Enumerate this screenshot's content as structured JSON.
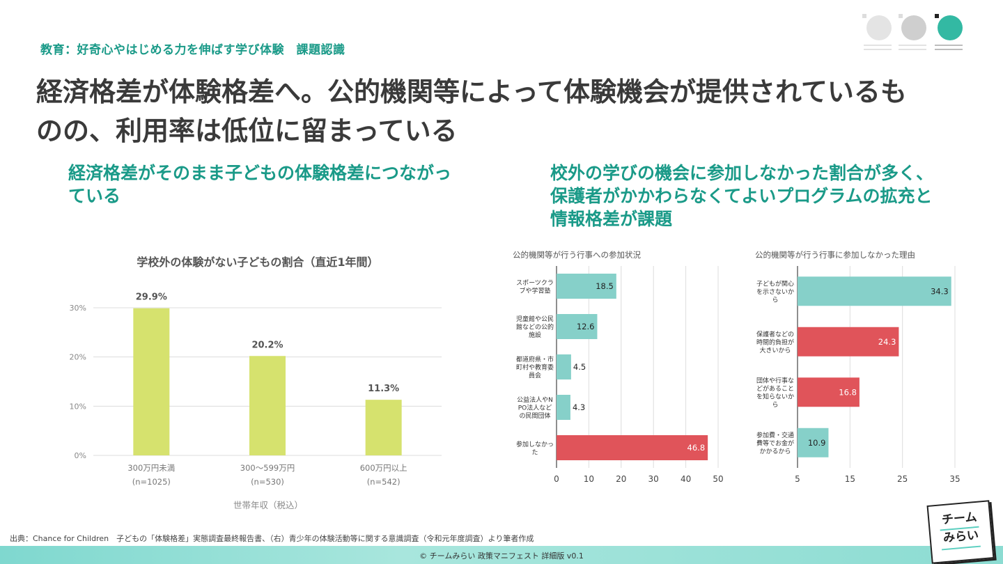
{
  "header": {
    "section_label": "教育：好奇心やはじめる力を伸ばす学び体験　課題認識",
    "title": "経済格差が体験格差へ。公的機関等によって体験機会が提供されているものの、利用率は低位に留まっている"
  },
  "left_heading": "経済格差がそのまま子どもの体験格差につながっている",
  "right_heading": "校外の学びの機会に参加しなかった割合が多く、保護者がかかわらなくてよいプログラムの拡充と情報格差が課題",
  "colors": {
    "accent": "#1a9a88",
    "bar_green": "#d6e26e",
    "bar_teal": "#86d0c9",
    "bar_red": "#e0545a"
  },
  "chart_data": [
    {
      "type": "bar",
      "title": "学校外の体験がない子どもの割合（直近1年間）",
      "xlabel": "世帯年収（税込）",
      "ylabel": "",
      "categories": [
        "300万円未満",
        "300～599万円",
        "600万円以上"
      ],
      "category_notes": [
        "(n=1025)",
        "(n=530)",
        "(n=542)"
      ],
      "values": [
        29.9,
        20.2,
        11.3
      ],
      "value_labels": [
        "29.9%",
        "20.2%",
        "11.3%"
      ],
      "ylim": [
        0,
        30
      ],
      "yticks": [
        0,
        10,
        20,
        30
      ],
      "ytick_labels": [
        "0%",
        "10%",
        "20%",
        "30%"
      ],
      "grid": true
    },
    {
      "type": "bar",
      "orientation": "horizontal",
      "title": "公的機関等が行う行事への参加状況",
      "categories": [
        "スポーツクラブや学習塾",
        "児童館や公民館などの公的施設",
        "都道府県・市町村や教育委員会",
        "公益法人やNPO法人などの民間団体",
        "参加しなかった"
      ],
      "values": [
        18.5,
        12.6,
        4.5,
        4.3,
        46.8
      ],
      "colors": [
        "#86d0c9",
        "#86d0c9",
        "#86d0c9",
        "#86d0c9",
        "#e0545a"
      ],
      "xlim": [
        0,
        50
      ],
      "xticks": [
        0,
        10,
        20,
        30,
        40,
        50
      ],
      "grid": true
    },
    {
      "type": "bar",
      "orientation": "horizontal",
      "title": "公的機関等が行う行事に参加しなかった理由",
      "categories": [
        "子どもが関心を示さないから",
        "保護者などの時間的負担が大きいから",
        "団体や行事などがあることを知らないから",
        "参加費・交通費等でお金がかかるから"
      ],
      "values": [
        34.3,
        24.3,
        16.8,
        10.9
      ],
      "colors": [
        "#86d0c9",
        "#e0545a",
        "#e0545a",
        "#86d0c9"
      ],
      "xlim": [
        5,
        35
      ],
      "xticks": [
        5,
        15,
        25,
        35
      ],
      "grid": true
    }
  ],
  "source_note": "出典：Chance for Children　子どもの「体験格差」実態調査最終報告書、（右）青少年の体験活動等に関する意識調査（令和元年度調査）より筆者作成",
  "footer": "© チームみらい 政策マニフェスト 詳細版 v0.1",
  "logo": {
    "line1": "チーム",
    "line2": "みらい"
  }
}
